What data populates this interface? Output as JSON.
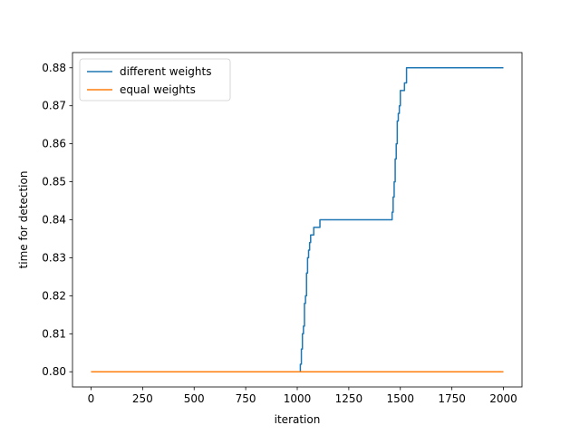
{
  "chart_data": {
    "type": "line",
    "title": "",
    "xlabel": "iteration",
    "ylabel": "time for detection",
    "xlim": [
      -90,
      2090
    ],
    "ylim": [
      0.796,
      0.884
    ],
    "xticks": [
      0,
      250,
      500,
      750,
      1000,
      1250,
      1500,
      1750,
      2000
    ],
    "xtick_labels": [
      "0",
      "250",
      "500",
      "750",
      "1000",
      "1250",
      "1500",
      "1750",
      "2000"
    ],
    "yticks": [
      0.8,
      0.81,
      0.82,
      0.83,
      0.84,
      0.85,
      0.86,
      0.87,
      0.88
    ],
    "ytick_labels": [
      "0.80",
      "0.81",
      "0.82",
      "0.83",
      "0.84",
      "0.85",
      "0.86",
      "0.87",
      "0.88"
    ],
    "grid": false,
    "legend_position": "top-left",
    "series": [
      {
        "name": "different weights",
        "color": "#1f77b4",
        "step": true,
        "x": [
          0,
          1015,
          1020,
          1025,
          1030,
          1035,
          1040,
          1045,
          1050,
          1055,
          1060,
          1065,
          1070,
          1080,
          1090,
          1110,
          1460,
          1465,
          1470,
          1475,
          1480,
          1485,
          1490,
          1495,
          1500,
          1510,
          1520,
          1530,
          2000
        ],
        "y": [
          0.8,
          0.802,
          0.806,
          0.81,
          0.812,
          0.818,
          0.82,
          0.826,
          0.83,
          0.832,
          0.834,
          0.836,
          0.836,
          0.838,
          0.838,
          0.84,
          0.842,
          0.846,
          0.85,
          0.856,
          0.86,
          0.866,
          0.868,
          0.87,
          0.874,
          0.874,
          0.876,
          0.88,
          0.88
        ]
      },
      {
        "name": "equal weights",
        "color": "#ff7f0e",
        "step": false,
        "x": [
          0,
          2000
        ],
        "y": [
          0.8,
          0.8
        ]
      }
    ]
  }
}
